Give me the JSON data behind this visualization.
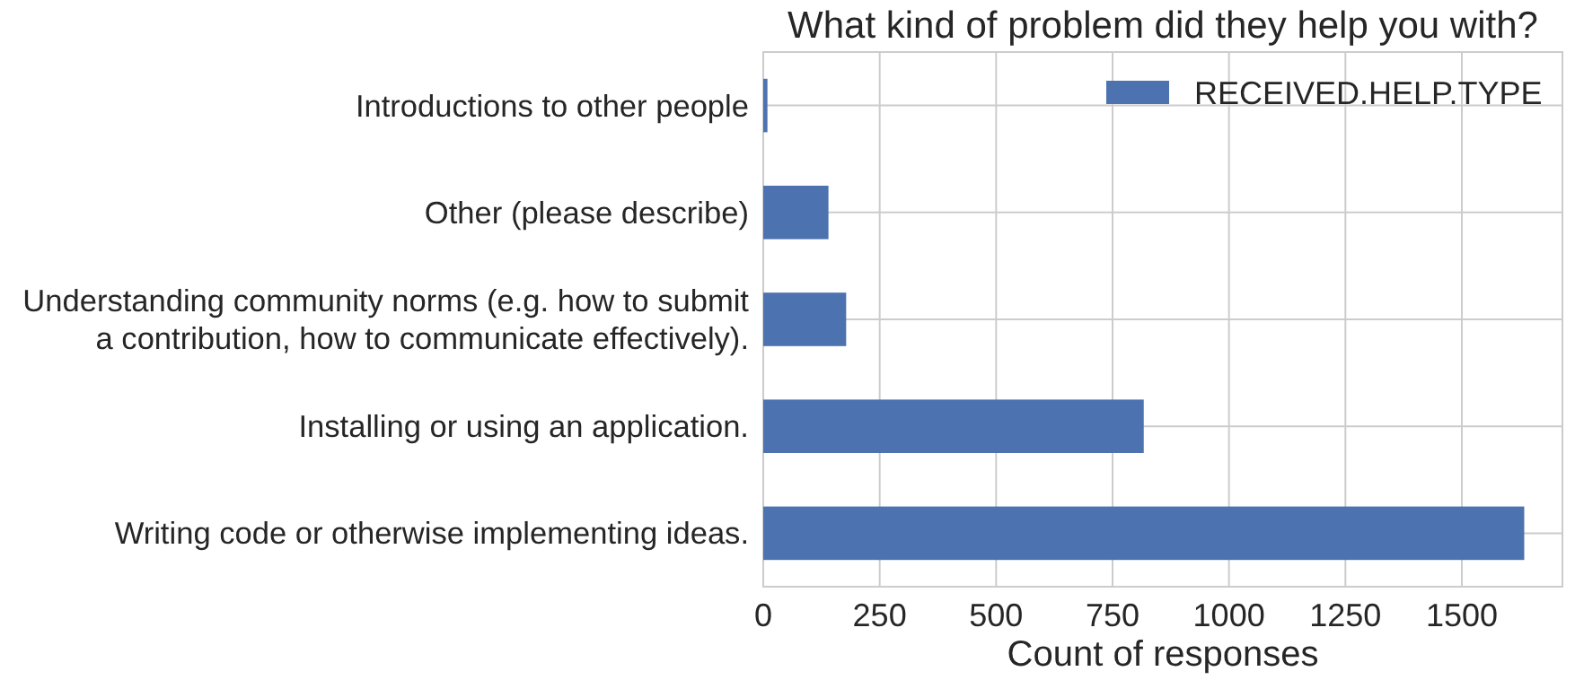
{
  "chart_data": {
    "type": "bar",
    "orientation": "horizontal",
    "title": "What kind of problem did they help you with?",
    "xlabel": "Count of responses",
    "categories": [
      "Introductions to other people",
      "Other (please describe)",
      "Understanding community norms (e.g. how to submit\na contribution, how to communicate effectively).",
      "Installing or using an application.",
      "Writing code or otherwise implementing ideas."
    ],
    "series": [
      {
        "name": "RECEIVED.HELP.TYPE",
        "color": "#4c72b0",
        "values": [
          9,
          140,
          178,
          817,
          1634
        ]
      }
    ],
    "xlim": [
      0,
      1716
    ],
    "xticks": [
      0,
      250,
      500,
      750,
      1000,
      1250,
      1500
    ],
    "grid": true,
    "legend": "top right"
  }
}
